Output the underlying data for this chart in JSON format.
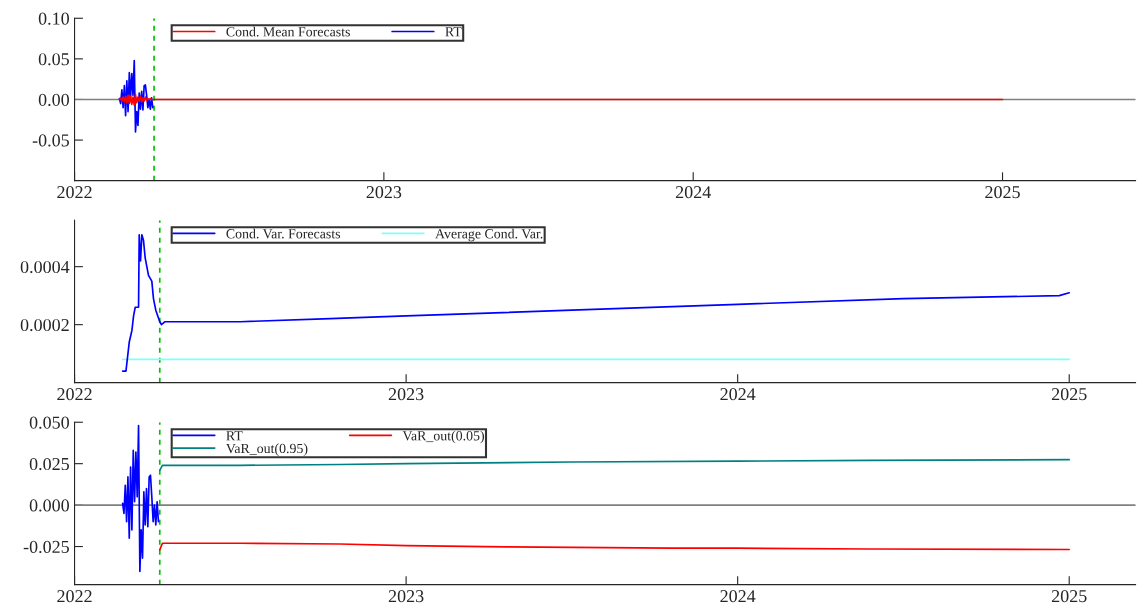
{
  "chart_data": [
    {
      "type": "line",
      "xlim": [
        2022.0,
        2025.43
      ],
      "xticks": [
        2022,
        2023,
        2024,
        2025
      ],
      "ylim": [
        -0.1,
        0.1
      ],
      "yticks": [
        {
          "value": 0.1,
          "label": "0.10"
        },
        {
          "value": 0.05,
          "label": "0.05"
        },
        {
          "value": 0.0,
          "label": "0.00"
        },
        {
          "value": -0.05,
          "label": "-0.05"
        }
      ],
      "legend": "top left",
      "ref_lines": [
        {
          "axis": "y",
          "value": 0,
          "color": "#808080"
        },
        {
          "axis": "x",
          "value": 2022.257,
          "color": "#00c000",
          "line_style": "dashed"
        }
      ],
      "series": [
        {
          "name": "Cond. Mean Forecasts",
          "color": "#ff0000",
          "x": [
            2022.145,
            2022.149,
            2022.153,
            2022.157,
            2022.161,
            2022.165,
            2022.169,
            2022.173,
            2022.177,
            2022.181,
            2022.185,
            2022.189,
            2022.193,
            2022.197,
            2022.201,
            2022.205,
            2022.209,
            2022.213,
            2022.217,
            2022.221,
            2022.225,
            2022.229,
            2022.233,
            2022.237,
            2022.241,
            2022.245,
            2022.249,
            2022.253,
            2025.0
          ],
          "values": [
            0.0,
            0.002,
            -0.002,
            0.003,
            -0.003,
            0.004,
            -0.004,
            0.005,
            -0.005,
            0.004,
            -0.006,
            0.003,
            -0.007,
            0.006,
            -0.004,
            0.003,
            -0.002,
            0.004,
            -0.003,
            0.002,
            -0.002,
            0.003,
            -0.001,
            0.001,
            0.0,
            0.001,
            0.0,
            0.0,
            0.0
          ]
        },
        {
          "name": "RT",
          "color": "#0000ff",
          "x": [
            2022.145,
            2022.149,
            2022.153,
            2022.157,
            2022.161,
            2022.165,
            2022.169,
            2022.173,
            2022.177,
            2022.181,
            2022.185,
            2022.189,
            2022.193,
            2022.197,
            2022.201,
            2022.205,
            2022.209,
            2022.213,
            2022.217,
            2022.221,
            2022.225,
            2022.229,
            2022.233,
            2022.237,
            2022.241,
            2022.245,
            2022.249,
            2022.253
          ],
          "values": [
            0.001,
            -0.005,
            0.012,
            -0.01,
            0.017,
            -0.02,
            0.023,
            -0.015,
            0.033,
            0.002,
            0.032,
            0.005,
            0.048,
            -0.04,
            -0.015,
            -0.032,
            0.008,
            -0.012,
            0.01,
            -0.013,
            0.017,
            0.018,
            0.005,
            -0.01,
            0.0,
            -0.012,
            0.002,
            -0.01
          ]
        }
      ]
    },
    {
      "type": "line",
      "xlim": [
        2022.0,
        2025.2
      ],
      "xticks": [
        2022,
        2023,
        2024,
        2025
      ],
      "ylim": [
        0,
        0.00056
      ],
      "yticks": [
        {
          "value": 0.0002,
          "label": "0.0002"
        },
        {
          "value": 0.0004,
          "label": "0.0004"
        }
      ],
      "legend": "top left",
      "ref_lines": [
        {
          "axis": "x",
          "value": 2022.257,
          "color": "#00c000",
          "line_style": "dashed"
        }
      ],
      "series": [
        {
          "name": "Cond. Var. Forecasts",
          "color": "#0000ff",
          "x": [
            2022.145,
            2022.155,
            2022.165,
            2022.173,
            2022.178,
            2022.183,
            2022.193,
            2022.195,
            2022.199,
            2022.203,
            2022.208,
            2022.213,
            2022.223,
            2022.233,
            2022.238,
            2022.245,
            2022.257,
            2022.262,
            2022.272,
            2022.5,
            2022.75,
            2023.0,
            2023.5,
            2024.0,
            2024.5,
            2024.97,
            2025.0
          ],
          "values": [
            4e-05,
            4e-05,
            0.00014,
            0.00018,
            0.00023,
            0.00026,
            0.00026,
            0.00051,
            0.00042,
            0.00051,
            0.00049,
            0.00043,
            0.00037,
            0.00035,
            0.00029,
            0.00025,
            0.00021,
            0.0002,
            0.00021,
            0.00021,
            0.00022,
            0.00023,
            0.00025,
            0.00027,
            0.00029,
            0.0003,
            0.00031
          ]
        },
        {
          "name": "Average Cond. Var.",
          "color": "#80ffff",
          "x": [
            2022.145,
            2025.0
          ],
          "values": [
            8e-05,
            8e-05
          ]
        }
      ]
    },
    {
      "type": "line",
      "xlim": [
        2022.0,
        2025.2
      ],
      "xticks": [
        2022,
        2023,
        2024,
        2025
      ],
      "ylim": [
        -0.048,
        0.05
      ],
      "yticks": [
        {
          "value": 0.05,
          "label": "0.050"
        },
        {
          "value": 0.025,
          "label": "0.025"
        },
        {
          "value": 0.0,
          "label": "0.000"
        },
        {
          "value": -0.025,
          "label": "-0.025"
        }
      ],
      "legend": "top left",
      "ref_lines": [
        {
          "axis": "y",
          "value": 0,
          "color": "#808080"
        },
        {
          "axis": "x",
          "value": 2022.257,
          "color": "#00c000",
          "line_style": "dashed"
        }
      ],
      "series": [
        {
          "name": "RT",
          "color": "#0000ff",
          "x": [
            2022.145,
            2022.149,
            2022.153,
            2022.157,
            2022.161,
            2022.165,
            2022.169,
            2022.173,
            2022.177,
            2022.181,
            2022.185,
            2022.189,
            2022.193,
            2022.197,
            2022.201,
            2022.205,
            2022.209,
            2022.213,
            2022.217,
            2022.221,
            2022.225,
            2022.229,
            2022.233,
            2022.237,
            2022.241,
            2022.245,
            2022.249,
            2022.253
          ],
          "values": [
            0.001,
            -0.005,
            0.012,
            -0.01,
            0.017,
            -0.02,
            0.023,
            -0.015,
            0.033,
            0.002,
            0.032,
            0.005,
            0.048,
            -0.04,
            -0.015,
            -0.032,
            0.008,
            -0.012,
            0.01,
            -0.013,
            0.017,
            0.018,
            0.005,
            -0.01,
            0.0,
            -0.012,
            0.002,
            -0.01
          ]
        },
        {
          "name": "VaR_out(0.95)",
          "color": "#008080",
          "x": [
            2022.257,
            2022.265,
            2022.5,
            2022.8,
            2023.0,
            2023.5,
            2024.0,
            2024.4,
            2025.0
          ],
          "values": [
            0.021,
            0.024,
            0.024,
            0.0245,
            0.025,
            0.026,
            0.0265,
            0.027,
            0.0274
          ]
        },
        {
          "name": "VaR_out(0.05)",
          "color": "#ff0000",
          "x": [
            2022.257,
            2022.265,
            2022.5,
            2022.8,
            2023.0,
            2023.3,
            2023.8,
            2024.0,
            2024.4,
            2025.0
          ],
          "values": [
            -0.027,
            -0.023,
            -0.023,
            -0.0235,
            -0.0245,
            -0.0252,
            -0.026,
            -0.026,
            -0.0265,
            -0.0268
          ]
        }
      ]
    }
  ]
}
